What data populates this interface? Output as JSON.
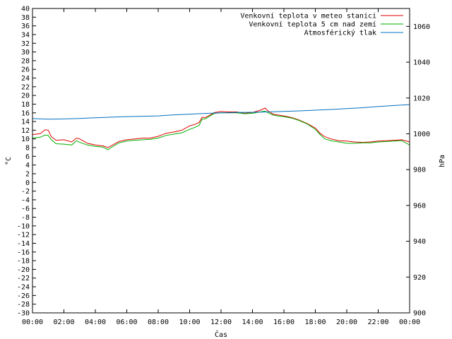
{
  "chart_data": {
    "type": "line",
    "xlabel": "Čas",
    "ylabel": "°C",
    "y2label": "hPa",
    "x_ticks": [
      "00:00",
      "02:00",
      "04:00",
      "06:00",
      "08:00",
      "10:00",
      "12:00",
      "14:00",
      "16:00",
      "18:00",
      "20:00",
      "22:00",
      "00:00"
    ],
    "xlim_hours": [
      0,
      24
    ],
    "ylim": [
      -30,
      40
    ],
    "y_ticks": [
      40,
      38,
      36,
      34,
      32,
      30,
      28,
      26,
      24,
      22,
      20,
      18,
      16,
      14,
      12,
      10,
      8,
      6,
      4,
      2,
      0,
      -2,
      -4,
      -6,
      -8,
      -10,
      -12,
      -14,
      -16,
      -18,
      -20,
      -22,
      -24,
      -26,
      -28,
      -30
    ],
    "y2lim": [
      900,
      1070
    ],
    "y2_ticks": [
      1060,
      1040,
      1020,
      1000,
      980,
      960,
      940,
      920,
      900
    ],
    "legend_position": "top-right",
    "series": [
      {
        "name": "Venkovní teplota v meteo stanici",
        "color": "#e00000",
        "axis": "left",
        "x": [
          0,
          0.5,
          0.8,
          1.0,
          1.2,
          1.5,
          2.0,
          2.5,
          2.8,
          3.0,
          3.5,
          4.0,
          4.5,
          4.8,
          5.0,
          5.5,
          6.0,
          6.5,
          7.0,
          7.5,
          8.0,
          8.5,
          9.0,
          9.5,
          10.0,
          10.3,
          10.6,
          10.8,
          11.0,
          11.3,
          11.6,
          12.0,
          12.5,
          13.0,
          13.5,
          14.0,
          14.5,
          14.8,
          15.0,
          15.3,
          15.6,
          16.0,
          16.5,
          17.0,
          17.5,
          18.0,
          18.3,
          18.6,
          19.0,
          19.5,
          20.0,
          20.5,
          21.0,
          21.5,
          22.0,
          22.5,
          23.0,
          23.5,
          24.0
        ],
        "values": [
          11.0,
          11.2,
          12.1,
          12.0,
          10.5,
          9.7,
          9.8,
          9.3,
          10.2,
          10.0,
          9.0,
          8.6,
          8.4,
          8.0,
          8.4,
          9.4,
          9.8,
          10.0,
          10.2,
          10.2,
          10.6,
          11.3,
          11.6,
          12.0,
          13.0,
          13.3,
          13.8,
          15.0,
          14.9,
          15.5,
          16.1,
          16.3,
          16.2,
          16.2,
          15.9,
          16.1,
          16.6,
          17.1,
          16.4,
          15.7,
          15.5,
          15.3,
          14.9,
          14.3,
          13.5,
          12.5,
          11.3,
          10.5,
          10.0,
          9.6,
          9.5,
          9.3,
          9.2,
          9.3,
          9.5,
          9.6,
          9.7,
          9.8,
          9.3
        ]
      },
      {
        "name": "Venkovní teplota 5 cm nad zemí",
        "color": "#00b000",
        "axis": "left",
        "x": [
          0,
          0.5,
          0.8,
          1.0,
          1.2,
          1.5,
          2.0,
          2.5,
          2.8,
          3.0,
          3.5,
          4.0,
          4.5,
          4.8,
          5.0,
          5.5,
          6.0,
          6.5,
          7.0,
          7.5,
          8.0,
          8.5,
          9.0,
          9.5,
          10.0,
          10.3,
          10.6,
          10.8,
          11.0,
          11.3,
          11.6,
          12.0,
          12.5,
          13.0,
          13.5,
          14.0,
          14.5,
          14.8,
          15.0,
          15.3,
          15.6,
          16.0,
          16.5,
          17.0,
          17.5,
          18.0,
          18.3,
          18.6,
          19.0,
          19.5,
          20.0,
          20.5,
          21.0,
          21.5,
          22.0,
          22.5,
          23.0,
          23.5,
          24.0
        ],
        "values": [
          10.2,
          10.4,
          10.9,
          10.8,
          9.8,
          8.9,
          8.8,
          8.6,
          9.6,
          9.2,
          8.6,
          8.3,
          8.1,
          7.5,
          8.0,
          9.1,
          9.5,
          9.7,
          9.8,
          9.9,
          10.2,
          10.8,
          11.1,
          11.4,
          12.2,
          12.6,
          13.1,
          14.6,
          14.6,
          15.3,
          15.9,
          16.0,
          16.0,
          16.0,
          15.8,
          15.9,
          16.2,
          16.4,
          16.0,
          15.5,
          15.3,
          15.1,
          14.8,
          14.2,
          13.4,
          12.2,
          11.0,
          10.0,
          9.6,
          9.3,
          9.0,
          9.0,
          9.1,
          9.1,
          9.3,
          9.4,
          9.5,
          9.6,
          8.6
        ]
      },
      {
        "name": "Atmosférický tlak",
        "color": "#0070c0",
        "axis": "right",
        "x": [
          0,
          1,
          2,
          3,
          4,
          5,
          6,
          7,
          8,
          9,
          10,
          11,
          12,
          13,
          14,
          15,
          16,
          17,
          18,
          19,
          20,
          21,
          22,
          23,
          24
        ],
        "values": [
          1008.5,
          1008.2,
          1008.3,
          1008.6,
          1009.0,
          1009.3,
          1009.6,
          1009.8,
          1010.0,
          1010.6,
          1011.0,
          1011.4,
          1011.7,
          1011.9,
          1012.0,
          1012.2,
          1012.5,
          1012.8,
          1013.2,
          1013.6,
          1014.1,
          1014.6,
          1015.2,
          1015.8,
          1016.3
        ]
      }
    ]
  }
}
